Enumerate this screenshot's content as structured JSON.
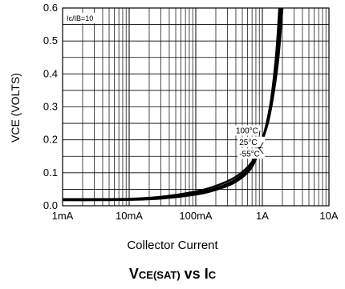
{
  "chart_data": {
    "type": "line",
    "title_main": "V",
    "title_sub": "CE(SAT)",
    "title_mid": " vs I",
    "title_sub2": "C",
    "xlabel": "Collector Current",
    "ylabel": "VCE (VOLTS)",
    "x_scale": "log",
    "xlim": [
      0.001,
      10
    ],
    "ylim": [
      0,
      0.6
    ],
    "grid": true,
    "condition_label": "Ic/IB=10",
    "x_ticks": [
      {
        "value": 0.001,
        "label": "1mA"
      },
      {
        "value": 0.01,
        "label": "10mA"
      },
      {
        "value": 0.1,
        "label": "100mA"
      },
      {
        "value": 1,
        "label": "1A"
      },
      {
        "value": 10,
        "label": "10A"
      }
    ],
    "y_ticks": [
      {
        "value": 0,
        "label": "0.0"
      },
      {
        "value": 0.1,
        "label": "0.1"
      },
      {
        "value": 0.2,
        "label": "0.2"
      },
      {
        "value": 0.3,
        "label": "0.3"
      },
      {
        "value": 0.4,
        "label": "0.4"
      },
      {
        "value": 0.5,
        "label": "0.5"
      },
      {
        "value": 0.6,
        "label": "0.6"
      }
    ],
    "series": [
      {
        "name": "100°C",
        "x": [
          0.001,
          0.003,
          0.01,
          0.03,
          0.1,
          0.2,
          0.4,
          0.7,
          1.0,
          1.3,
          1.6,
          1.8
        ],
        "y": [
          0.017,
          0.017,
          0.018,
          0.022,
          0.034,
          0.048,
          0.073,
          0.118,
          0.2,
          0.3,
          0.45,
          0.6
        ]
      },
      {
        "name": "25°C",
        "x": [
          0.001,
          0.003,
          0.01,
          0.03,
          0.1,
          0.2,
          0.4,
          0.7,
          1.0,
          1.3,
          1.6,
          1.9
        ],
        "y": [
          0.018,
          0.018,
          0.019,
          0.024,
          0.038,
          0.053,
          0.08,
          0.125,
          0.2,
          0.29,
          0.43,
          0.6
        ]
      },
      {
        "name": "-55°C",
        "x": [
          0.001,
          0.003,
          0.01,
          0.03,
          0.1,
          0.2,
          0.4,
          0.7,
          1.0,
          1.3,
          1.7,
          2.0
        ],
        "y": [
          0.02,
          0.02,
          0.021,
          0.027,
          0.043,
          0.06,
          0.088,
          0.133,
          0.2,
          0.28,
          0.43,
          0.6
        ]
      }
    ]
  }
}
